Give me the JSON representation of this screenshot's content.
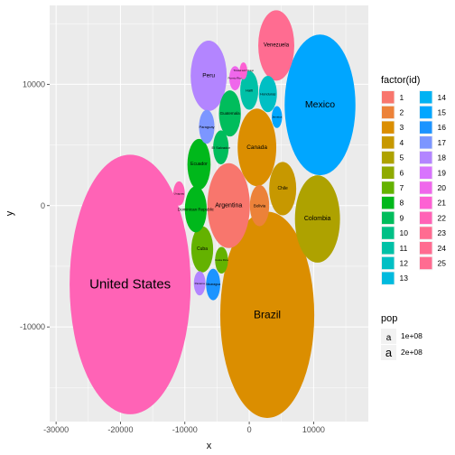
{
  "chart_data": {
    "type": "scatter",
    "subtype": "packed-bubble",
    "xlabel": "x",
    "ylabel": "y",
    "xlim": [
      -31000,
      18500
    ],
    "ylim": [
      -17800,
      16500
    ],
    "x_ticks": [
      -30000,
      -20000,
      -10000,
      0,
      10000
    ],
    "x_tick_labels": [
      "-30000",
      "-20000",
      "-10000",
      "0",
      "10000"
    ],
    "y_ticks": [
      -10000,
      0,
      10000
    ],
    "y_tick_labels": [
      "-10000",
      "0",
      "10000"
    ],
    "grid": true,
    "panel_background": "#ebebeb",
    "legend_position": "right",
    "color_legend": {
      "title": "factor(id)",
      "items": [
        {
          "label": "1",
          "color": "#F8766D"
        },
        {
          "label": "2",
          "color": "#EC8239"
        },
        {
          "label": "3",
          "color": "#DB8E00"
        },
        {
          "label": "4",
          "color": "#C79800"
        },
        {
          "label": "5",
          "color": "#AEA200"
        },
        {
          "label": "6",
          "color": "#8FAA00"
        },
        {
          "label": "7",
          "color": "#64B200"
        },
        {
          "label": "8",
          "color": "#00B81B"
        },
        {
          "label": "9",
          "color": "#00BD5C"
        },
        {
          "label": "10",
          "color": "#00C086"
        },
        {
          "label": "11",
          "color": "#00C1A7"
        },
        {
          "label": "12",
          "color": "#00BFC4"
        },
        {
          "label": "13",
          "color": "#00BADE"
        },
        {
          "label": "14",
          "color": "#00B2F3"
        },
        {
          "label": "15",
          "color": "#00A6FF"
        },
        {
          "label": "16",
          "color": "#1C94FF"
        },
        {
          "label": "17",
          "color": "#7C96FF"
        },
        {
          "label": "18",
          "color": "#B385FF"
        },
        {
          "label": "19",
          "color": "#D874FD"
        },
        {
          "label": "20",
          "color": "#EF67EB"
        },
        {
          "label": "21",
          "color": "#FD61D3"
        },
        {
          "label": "22",
          "color": "#FF63B6"
        },
        {
          "label": "23",
          "color": "#FF6C91"
        },
        {
          "label": "24",
          "color": "#FF6C91"
        },
        {
          "label": "25",
          "color": "#FF6C91"
        }
      ]
    },
    "size_legend": {
      "title": "pop",
      "symbol": "a",
      "items": [
        {
          "label": "1e+08",
          "value": 100000000
        },
        {
          "label": "2e+08",
          "value": 200000000
        }
      ]
    },
    "bubbles": [
      {
        "label": "United States",
        "x": -18500,
        "y": -6500,
        "rx": 9400,
        "ry": 10700,
        "color": "#FF63B6",
        "label_size": 15
      },
      {
        "label": "Brazil",
        "x": 2800,
        "y": -9000,
        "rx": 7300,
        "ry": 8500,
        "color": "#DB8E00",
        "label_size": 12
      },
      {
        "label": "Mexico",
        "x": 11000,
        "y": 8300,
        "rx": 5500,
        "ry": 5800,
        "color": "#00A6FF",
        "label_size": 10.5
      },
      {
        "label": "Colombia",
        "x": 10600,
        "y": -1100,
        "rx": 3500,
        "ry": 3600,
        "color": "#AEA200",
        "label_size": 7
      },
      {
        "label": "Argentina",
        "x": -3200,
        "y": 0,
        "rx": 3300,
        "ry": 3500,
        "color": "#F8766D",
        "label_size": 7
      },
      {
        "label": "Canada",
        "x": 1200,
        "y": 4800,
        "rx": 3000,
        "ry": 3200,
        "color": "#DB8E00",
        "label_size": 6.5
      },
      {
        "label": "Peru",
        "x": -6300,
        "y": 10700,
        "rx": 2800,
        "ry": 2900,
        "color": "#B385FF",
        "label_size": 6.5
      },
      {
        "label": "Venezuela",
        "x": 4200,
        "y": 13200,
        "rx": 2800,
        "ry": 2900,
        "color": "#FF6C91",
        "label_size": 6
      },
      {
        "label": "Chile",
        "x": 5200,
        "y": 1400,
        "rx": 2100,
        "ry": 2200,
        "color": "#C79800",
        "label_size": 5
      },
      {
        "label": "Ecuador",
        "x": -7800,
        "y": 3400,
        "rx": 1800,
        "ry": 2100,
        "color": "#00B81B",
        "label_size": 5
      },
      {
        "label": "Guatemala",
        "x": -3000,
        "y": 7600,
        "rx": 1700,
        "ry": 1900,
        "color": "#00BD5C",
        "label_size": 4.5
      },
      {
        "label": "Cuba",
        "x": -7300,
        "y": -3600,
        "rx": 1700,
        "ry": 1900,
        "color": "#64B200",
        "label_size": 5
      },
      {
        "label": "Bolivia",
        "x": 1600,
        "y": 0,
        "rx": 1500,
        "ry": 1700,
        "color": "#EC8239",
        "label_size": 4.5
      },
      {
        "label": "Haiti",
        "x": 0,
        "y": 9500,
        "rx": 1400,
        "ry": 1600,
        "color": "#00C1A7",
        "label_size": 4
      },
      {
        "label": "Dominican Republic",
        "x": -8300,
        "y": -300,
        "rx": 1700,
        "ry": 1900,
        "color": "#00B81B",
        "label_size": 4.5
      },
      {
        "label": "Honduras",
        "x": 2900,
        "y": 9200,
        "rx": 1400,
        "ry": 1500,
        "color": "#00BFC4",
        "label_size": 4
      },
      {
        "label": "El Salvador",
        "x": -4400,
        "y": 4800,
        "rx": 1200,
        "ry": 1400,
        "color": "#00BD5C",
        "label_size": 4
      },
      {
        "label": "Paraguay",
        "x": -6600,
        "y": 6500,
        "rx": 1200,
        "ry": 1400,
        "color": "#7C96FF",
        "label_size": 4
      },
      {
        "label": "Nicaragua",
        "x": -5600,
        "y": -6500,
        "rx": 1100,
        "ry": 1300,
        "color": "#1C94FF",
        "label_size": 3.5
      },
      {
        "label": "Costa Rica",
        "x": -4300,
        "y": -4500,
        "rx": 1000,
        "ry": 1100,
        "color": "#64B200",
        "label_size": 3
      },
      {
        "label": "Panama",
        "x": -7700,
        "y": -6400,
        "rx": 900,
        "ry": 1000,
        "color": "#B385FF",
        "label_size": 3
      },
      {
        "label": "Uruguay",
        "x": -10900,
        "y": 1000,
        "rx": 900,
        "ry": 1000,
        "color": "#FF63B6",
        "label_size": 3
      },
      {
        "label": "Jamaica",
        "x": 4300,
        "y": 7300,
        "rx": 800,
        "ry": 900,
        "color": "#00A6FF",
        "label_size": 3
      },
      {
        "label": "Puerto Rico",
        "x": -2200,
        "y": 10500,
        "rx": 900,
        "ry": 1000,
        "color": "#EF67EB",
        "label_size": 3
      },
      {
        "label": "Trinidad and Tobago",
        "x": -900,
        "y": 11100,
        "rx": 600,
        "ry": 700,
        "color": "#FD61D3",
        "label_size": 2.5
      }
    ]
  }
}
